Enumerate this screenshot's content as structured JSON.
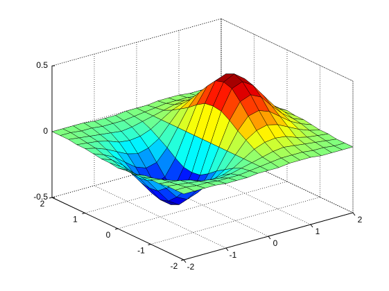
{
  "chart_data": {
    "type": "surface",
    "colormap": "jet",
    "grid": true,
    "x": [
      -2,
      -1.75,
      -1.5,
      -1.25,
      -1,
      -0.75,
      -0.5,
      -0.25,
      0,
      0.25,
      0.5,
      0.75,
      1,
      1.25,
      1.5,
      1.75,
      2
    ],
    "y": [
      -2,
      -1.75,
      -1.5,
      -1.25,
      -1,
      -0.75,
      -0.5,
      -0.25,
      0,
      0.25,
      0.5,
      0.75,
      1,
      1.25,
      1.5,
      1.75,
      2
    ],
    "z": [
      [
        0,
        0,
        0,
        0,
        -0.01,
        -0.01,
        -0.01,
        0,
        0,
        0,
        0.01,
        0.01,
        0.01,
        0,
        0,
        0,
        0
      ],
      [
        0,
        0,
        -0.01,
        -0.01,
        -0.02,
        -0.02,
        -0.02,
        -0.01,
        0,
        0.01,
        0.02,
        0.02,
        0.02,
        0.01,
        0.01,
        0,
        0
      ],
      [
        0,
        -0.01,
        -0.02,
        -0.03,
        -0.04,
        -0.05,
        -0.04,
        -0.02,
        0,
        0.02,
        0.04,
        0.05,
        0.04,
        0.03,
        0.02,
        0.01,
        0
      ],
      [
        -0.01,
        -0.02,
        -0.03,
        -0.05,
        -0.08,
        -0.09,
        -0.08,
        -0.05,
        0,
        0.05,
        0.08,
        0.09,
        0.08,
        0.05,
        0.03,
        0.02,
        0.01
      ],
      [
        -0.01,
        -0.03,
        -0.06,
        -0.1,
        -0.14,
        -0.16,
        -0.14,
        -0.09,
        0,
        0.09,
        0.14,
        0.16,
        0.14,
        0.1,
        0.06,
        0.03,
        0.01
      ],
      [
        -0.02,
        -0.05,
        -0.09,
        -0.15,
        -0.21,
        -0.24,
        -0.22,
        -0.13,
        0,
        0.13,
        0.22,
        0.24,
        0.21,
        0.15,
        0.09,
        0.05,
        0.02
      ],
      [
        -0.03,
        -0.06,
        -0.12,
        -0.2,
        -0.29,
        -0.33,
        -0.3,
        -0.18,
        0,
        0.18,
        0.3,
        0.33,
        0.29,
        0.2,
        0.12,
        0.06,
        0.03
      ],
      [
        -0.03,
        -0.08,
        -0.15,
        -0.25,
        -0.35,
        -0.4,
        -0.37,
        -0.22,
        0,
        0.22,
        0.37,
        0.4,
        0.35,
        0.25,
        0.15,
        0.08,
        0.03
      ],
      [
        -0.04,
        -0.08,
        -0.16,
        -0.26,
        -0.37,
        -0.43,
        -0.39,
        -0.23,
        0,
        0.23,
        0.39,
        0.43,
        0.37,
        0.26,
        0.16,
        0.08,
        0.04
      ],
      [
        -0.03,
        -0.08,
        -0.15,
        -0.25,
        -0.35,
        -0.4,
        -0.37,
        -0.22,
        0,
        0.22,
        0.37,
        0.4,
        0.35,
        0.25,
        0.15,
        0.08,
        0.03
      ],
      [
        -0.03,
        -0.06,
        -0.12,
        -0.2,
        -0.29,
        -0.33,
        -0.3,
        -0.18,
        0,
        0.18,
        0.3,
        0.33,
        0.29,
        0.2,
        0.12,
        0.06,
        0.03
      ],
      [
        -0.02,
        -0.05,
        -0.09,
        -0.15,
        -0.21,
        -0.24,
        -0.22,
        -0.13,
        0,
        0.13,
        0.22,
        0.24,
        0.21,
        0.15,
        0.09,
        0.05,
        0.02
      ],
      [
        -0.01,
        -0.03,
        -0.06,
        -0.1,
        -0.14,
        -0.16,
        -0.14,
        -0.09,
        0,
        0.09,
        0.14,
        0.16,
        0.14,
        0.1,
        0.06,
        0.03,
        0.01
      ],
      [
        -0.01,
        -0.02,
        -0.03,
        -0.05,
        -0.08,
        -0.09,
        -0.08,
        -0.05,
        0,
        0.05,
        0.08,
        0.09,
        0.08,
        0.05,
        0.03,
        0.02,
        0.01
      ],
      [
        0,
        -0.01,
        -0.02,
        -0.03,
        -0.04,
        -0.05,
        -0.04,
        -0.02,
        0,
        0.02,
        0.04,
        0.05,
        0.04,
        0.03,
        0.02,
        0.01,
        0
      ],
      [
        0,
        0,
        -0.01,
        -0.01,
        -0.02,
        -0.02,
        -0.02,
        -0.01,
        0,
        0.01,
        0.02,
        0.02,
        0.02,
        0.01,
        0.01,
        0,
        0
      ],
      [
        0,
        0,
        0,
        0,
        -0.01,
        -0.01,
        -0.01,
        0,
        0,
        0,
        0.01,
        0.01,
        0.01,
        0,
        0,
        0,
        0
      ]
    ],
    "xlim": [
      -2,
      2
    ],
    "ylim": [
      -2,
      2
    ],
    "zlim": [
      -0.5,
      0.5
    ],
    "xticks": [
      -2,
      -1,
      0,
      1,
      2
    ],
    "yticks": [
      -2,
      -1,
      0,
      1,
      2
    ],
    "zticks": [
      -0.5,
      0,
      0.5
    ]
  }
}
